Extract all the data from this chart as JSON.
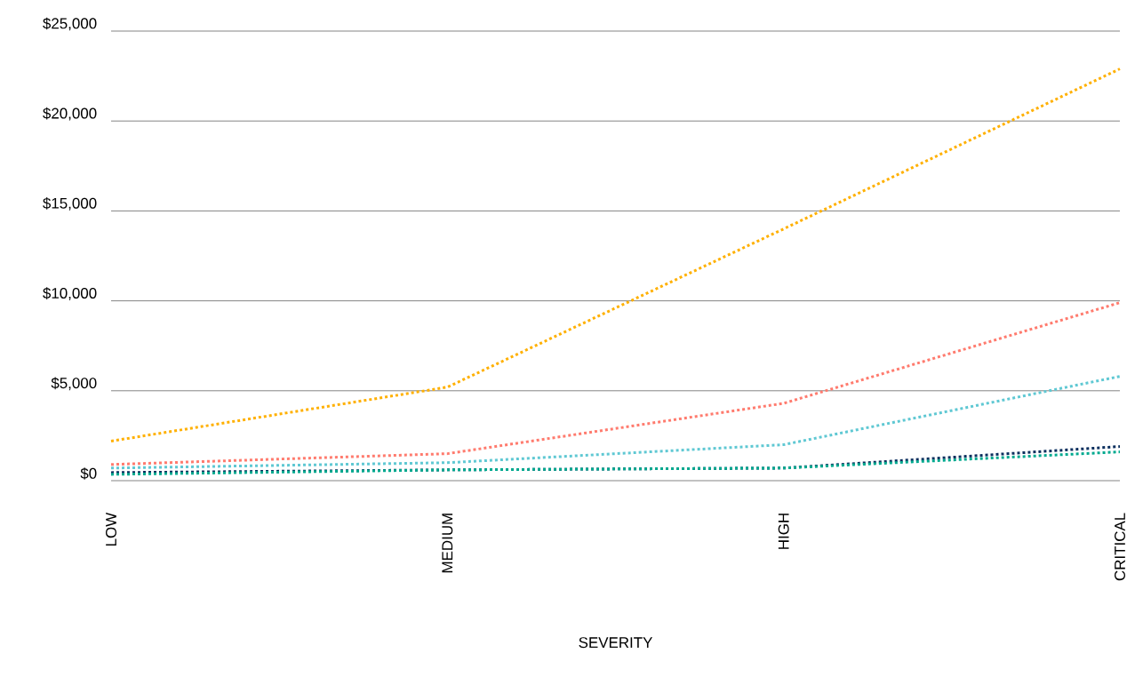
{
  "chart_data": {
    "type": "line",
    "xlabel": "SEVERITY",
    "categories": [
      "LOW",
      "MEDIUM",
      "HIGH",
      "CRITICAL"
    ],
    "series": [
      {
        "color": "#ffb000",
        "values": [
          2200,
          5200,
          14000,
          22900
        ]
      },
      {
        "color": "#ff7b6e",
        "values": [
          900,
          1500,
          4300,
          9900
        ]
      },
      {
        "color": "#5fc8d3",
        "values": [
          700,
          1000,
          2000,
          5800
        ]
      },
      {
        "color": "#0b2f5e",
        "values": [
          450,
          600,
          700,
          1900
        ]
      },
      {
        "color": "#00a98f",
        "values": [
          350,
          600,
          700,
          1600
        ]
      }
    ],
    "ylim": [
      0,
      25000
    ],
    "yticks": [
      {
        "value": 0,
        "label": "$0"
      },
      {
        "value": 5000,
        "label": "$5,000"
      },
      {
        "value": 10000,
        "label": "$10,000"
      },
      {
        "value": 15000,
        "label": "$15,000"
      },
      {
        "value": 20000,
        "label": "$20,000"
      },
      {
        "value": 25000,
        "label": "$25,000"
      }
    ],
    "grid": "y",
    "marker": "none",
    "line_style": "dotted"
  }
}
